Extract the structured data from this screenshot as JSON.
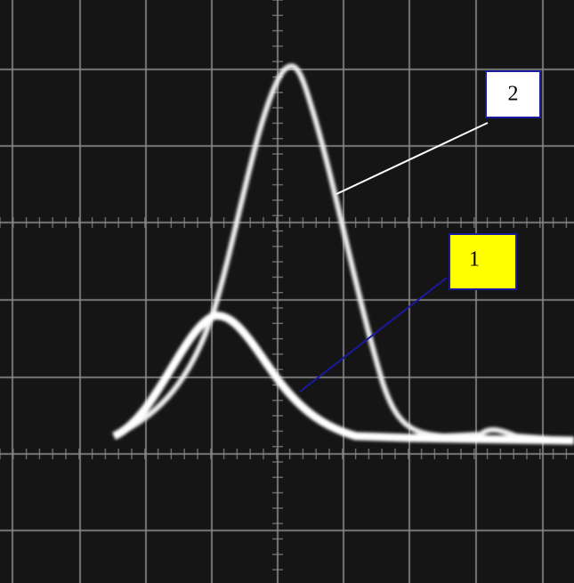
{
  "labels": [
    "1",
    "2"
  ]
}
